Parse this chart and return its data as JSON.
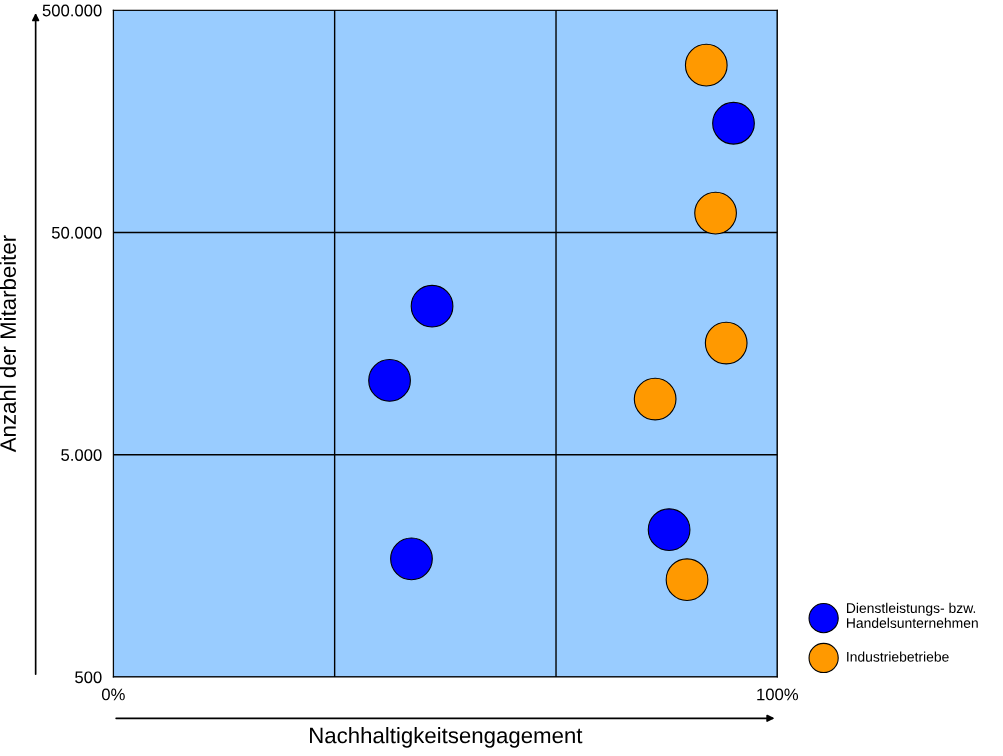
{
  "chart_data": {
    "type": "scatter",
    "xlabel": "Nachhaltigkeitsengagement",
    "ylabel": "Anzahl der Mitarbeiter",
    "series": [
      {
        "name": "Dienstleistungs- bzw.\nHandelsunternehmen",
        "color": "#0000ff",
        "x": [
          93.4,
          48.0,
          41.6,
          83.7,
          44.9
        ],
        "values": [
          155000,
          23300,
          10800,
          2300,
          1700
        ]
      },
      {
        "name": "Industriebetriebe",
        "color": "#ff9900",
        "x": [
          89.3,
          90.7,
          92.3,
          81.6,
          86.4
        ],
        "values": [
          283000,
          61100,
          15900,
          8900,
          1370
        ]
      }
    ],
    "xlim": [
      0,
      100
    ],
    "xticks": [
      {
        "value": 0,
        "label": "0%"
      },
      {
        "value": 33.33,
        "label": null
      },
      {
        "value": 66.67,
        "label": null
      },
      {
        "value": 100,
        "label": "100%"
      }
    ],
    "ylim": [
      500,
      500000
    ],
    "yticks": [
      {
        "value": 500,
        "label": "500"
      },
      {
        "value": 5000,
        "label": "5.000"
      },
      {
        "value": 50000,
        "label": "50.000"
      },
      {
        "value": 500000,
        "label": "500.000"
      }
    ],
    "log": "y",
    "grid": true,
    "legend": "bottom right",
    "marker": "circle"
  }
}
